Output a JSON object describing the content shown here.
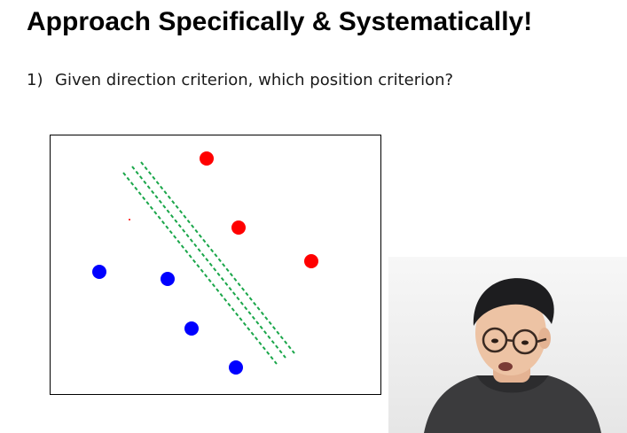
{
  "slide": {
    "title": "Approach Specifically & Systematically!",
    "bullet": {
      "number": "1)",
      "text": "Given direction criterion, which position criterion?"
    }
  },
  "colors": {
    "red_class": "#ff0000",
    "blue_class": "#0000ff",
    "boundary": "#1aa64a",
    "frame": "#000000"
  },
  "icons": {
    "presenter": "presenter-webcam-video"
  }
}
